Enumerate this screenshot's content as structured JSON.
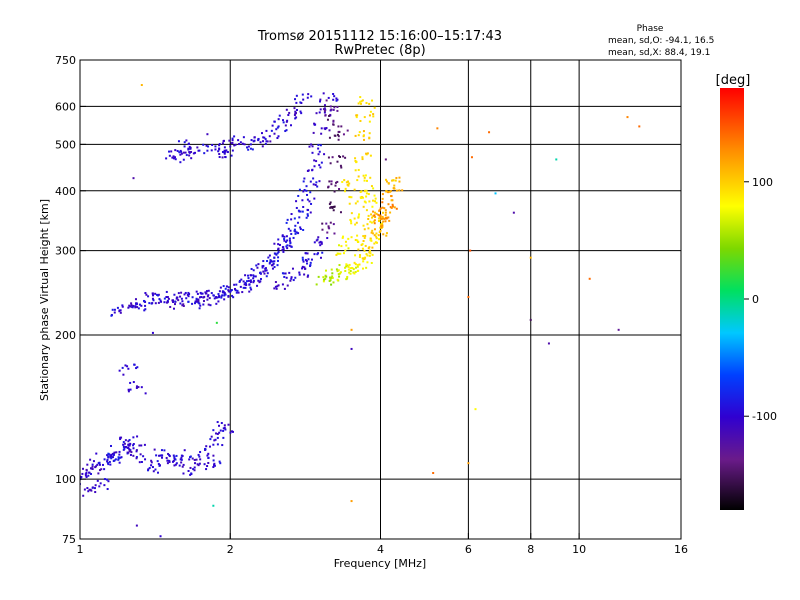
{
  "chart_data": {
    "type": "scatter",
    "title": "Tromsø 20151112 15:16:00–15:17:43",
    "subtitle": "RwPretec (8p)",
    "xlabel": "Frequency [MHz]",
    "ylabel": "Stationary phase Virtual Height [km]",
    "x_scale": "log",
    "y_scale": "log",
    "xlim": [
      1,
      16
    ],
    "ylim": [
      75,
      750
    ],
    "x_ticks": [
      1,
      2,
      4,
      6,
      8,
      10,
      16
    ],
    "y_ticks": [
      75,
      100,
      200,
      300,
      400,
      500,
      600,
      750
    ],
    "x_tick_labels": [
      "1",
      "2",
      "4",
      "6",
      "8",
      "10",
      "16"
    ],
    "y_tick_labels": [
      "75",
      "100",
      "200",
      "300",
      "400",
      "500",
      "600",
      "750"
    ],
    "x_grid": [
      2,
      4,
      6,
      8,
      10
    ],
    "y_grid": [
      100,
      200,
      300,
      400,
      500,
      600
    ],
    "grid": true,
    "stats": {
      "heading": "Phase",
      "line1": "mean, sd,O: -94.1, 16.5",
      "line2": "mean, sd,X:  88.4, 19.1"
    },
    "colorbar": {
      "label": "[deg]",
      "min": -180,
      "max": 180,
      "ticks": [
        100,
        0,
        -100
      ],
      "tick_labels": [
        "100",
        "0",
        "-100"
      ],
      "colormap": "rainbow"
    },
    "series": [
      {
        "trace": "O-mode F-region trace",
        "points": [
          [
            1.2,
            225,
            -95
          ],
          [
            1.25,
            228,
            -105
          ],
          [
            1.3,
            232,
            -100
          ],
          [
            1.35,
            230,
            -95
          ],
          [
            1.4,
            238,
            -100
          ],
          [
            1.45,
            236,
            -90
          ],
          [
            1.5,
            240,
            -105
          ],
          [
            1.55,
            232,
            -110
          ],
          [
            1.6,
            238,
            -95
          ],
          [
            1.65,
            241,
            -100
          ],
          [
            1.7,
            233,
            -92
          ],
          [
            1.75,
            240,
            -98
          ],
          [
            1.8,
            237,
            -105
          ],
          [
            1.85,
            242,
            -100
          ],
          [
            1.9,
            240,
            -95
          ],
          [
            1.95,
            244,
            -102
          ],
          [
            2.0,
            246,
            -90
          ],
          [
            2.05,
            248,
            -95
          ],
          [
            2.1,
            252,
            -100
          ],
          [
            2.15,
            256,
            -88
          ],
          [
            2.2,
            260,
            -95
          ],
          [
            2.25,
            265,
            -100
          ],
          [
            2.3,
            270,
            -92
          ],
          [
            2.35,
            275,
            -98
          ],
          [
            2.4,
            282,
            -95
          ],
          [
            2.45,
            290,
            -90
          ],
          [
            2.5,
            298,
            -92
          ],
          [
            2.55,
            305,
            -100
          ],
          [
            2.6,
            315,
            -95
          ],
          [
            2.65,
            325,
            -90
          ],
          [
            2.7,
            338,
            -88
          ],
          [
            2.75,
            352,
            -92
          ],
          [
            2.8,
            370,
            -95
          ],
          [
            2.85,
            392,
            -90
          ],
          [
            2.9,
            418,
            -95
          ],
          [
            2.95,
            450,
            -100
          ],
          [
            3.0,
            490,
            -98
          ],
          [
            3.05,
            540,
            -105
          ],
          [
            3.1,
            590,
            -110
          ],
          [
            3.15,
            625,
            -100
          ],
          [
            2.55,
            255,
            -105
          ],
          [
            2.65,
            262,
            -95
          ],
          [
            2.75,
            270,
            -100
          ],
          [
            2.85,
            282,
            -90
          ],
          [
            2.95,
            295,
            -95
          ],
          [
            3.05,
            312,
            -100
          ],
          [
            3.15,
            335,
            -140
          ],
          [
            3.2,
            370,
            -150
          ],
          [
            3.25,
            410,
            -145
          ],
          [
            3.28,
            460,
            -150
          ],
          [
            3.3,
            520,
            -145
          ],
          [
            3.22,
            560,
            -140
          ],
          [
            3.18,
            600,
            -130
          ],
          [
            2.8,
            620,
            -100
          ],
          [
            2.7,
            585,
            -105
          ],
          [
            2.6,
            560,
            -100
          ],
          [
            2.5,
            545,
            -95
          ],
          [
            2.4,
            520,
            -105
          ],
          [
            2.3,
            505,
            -100
          ],
          [
            2.2,
            500,
            -95
          ],
          [
            2.1,
            505,
            -100
          ],
          [
            2.0,
            495,
            -105
          ],
          [
            1.9,
            490,
            -100
          ],
          [
            1.8,
            485,
            -95
          ],
          [
            1.7,
            480,
            -100
          ],
          [
            1.6,
            478,
            -105
          ],
          [
            1.55,
            470,
            -100
          ],
          [
            1.62,
            495,
            -95
          ],
          [
            1.95,
            478,
            -100
          ]
        ]
      },
      {
        "trace": "X-mode F-region trace",
        "points": [
          [
            3.1,
            262,
            55
          ],
          [
            3.2,
            265,
            60
          ],
          [
            3.3,
            268,
            65
          ],
          [
            3.4,
            272,
            70
          ],
          [
            3.5,
            276,
            75
          ],
          [
            3.6,
            280,
            80
          ],
          [
            3.7,
            288,
            85
          ],
          [
            3.75,
            295,
            90
          ],
          [
            3.8,
            305,
            95
          ],
          [
            3.82,
            318,
            90
          ],
          [
            3.85,
            330,
            100
          ],
          [
            3.88,
            345,
            95
          ],
          [
            3.9,
            360,
            100
          ],
          [
            3.8,
            380,
            90
          ],
          [
            3.75,
            400,
            85
          ],
          [
            3.7,
            430,
            90
          ],
          [
            3.68,
            470,
            95
          ],
          [
            3.7,
            520,
            100
          ],
          [
            3.72,
            570,
            95
          ],
          [
            3.75,
            610,
            90
          ],
          [
            3.4,
            300,
            80
          ],
          [
            3.5,
            320,
            85
          ],
          [
            3.55,
            350,
            90
          ],
          [
            3.6,
            380,
            88
          ],
          [
            3.45,
            410,
            92
          ],
          [
            4.0,
            330,
            110
          ],
          [
            4.05,
            345,
            120
          ],
          [
            4.1,
            360,
            115
          ],
          [
            4.15,
            375,
            125
          ],
          [
            4.2,
            390,
            120
          ],
          [
            4.25,
            405,
            110
          ],
          [
            4.22,
            420,
            105
          ],
          [
            4.0,
            355,
            130
          ]
        ]
      },
      {
        "trace": "E-region trace",
        "points": [
          [
            1.0,
            100,
            -95
          ],
          [
            1.03,
            103,
            -100
          ],
          [
            1.06,
            105,
            -110
          ],
          [
            1.09,
            108,
            -100
          ],
          [
            1.12,
            110,
            -90
          ],
          [
            1.15,
            112,
            -95
          ],
          [
            1.18,
            110,
            -85
          ],
          [
            1.2,
            114,
            -100
          ],
          [
            1.22,
            118,
            -95
          ],
          [
            1.25,
            120,
            -105
          ],
          [
            1.28,
            116,
            -100
          ],
          [
            1.3,
            115,
            -110
          ],
          [
            1.35,
            110,
            -100
          ],
          [
            1.4,
            106,
            -95
          ],
          [
            1.45,
            112,
            -100
          ],
          [
            1.5,
            108,
            -105
          ],
          [
            1.55,
            110,
            -100
          ],
          [
            1.6,
            112,
            -95
          ],
          [
            1.65,
            104,
            -100
          ],
          [
            1.7,
            108,
            -105
          ],
          [
            1.8,
            112,
            -100
          ],
          [
            1.85,
            118,
            -95
          ],
          [
            1.9,
            125,
            -100
          ],
          [
            1.95,
            128,
            -105
          ],
          [
            1.85,
            106,
            -100
          ],
          [
            1.3,
            155,
            -105
          ],
          [
            1.25,
            170,
            -100
          ],
          [
            1.05,
            95,
            -110
          ],
          [
            1.1,
            98,
            -100
          ]
        ]
      },
      {
        "trace": "scattered points",
        "points": [
          [
            1.33,
            665,
            110
          ],
          [
            1.28,
            425,
            -120
          ],
          [
            1.8,
            525,
            -110
          ],
          [
            5.2,
            540,
            130
          ],
          [
            6.6,
            530,
            140
          ],
          [
            6.8,
            395,
            -30
          ],
          [
            7.4,
            360,
            -120
          ],
          [
            8.0,
            290,
            110
          ],
          [
            9.0,
            465,
            -10
          ],
          [
            12.5,
            570,
            130
          ],
          [
            13.2,
            545,
            140
          ],
          [
            10.5,
            262,
            140
          ],
          [
            8.0,
            215,
            -150
          ],
          [
            8.7,
            192,
            -120
          ],
          [
            12.0,
            205,
            -130
          ],
          [
            6.1,
            470,
            140
          ],
          [
            6.05,
            300,
            150
          ],
          [
            6.0,
            240,
            140
          ],
          [
            6.2,
            140,
            80
          ],
          [
            6.0,
            108,
            120
          ],
          [
            5.1,
            103,
            140
          ],
          [
            3.5,
            90,
            120
          ],
          [
            1.85,
            88,
            -10
          ],
          [
            1.3,
            80,
            -110
          ],
          [
            1.45,
            76,
            -100
          ],
          [
            3.5,
            187,
            -110
          ],
          [
            3.5,
            205,
            120
          ],
          [
            4.1,
            465,
            -140
          ],
          [
            1.88,
            212,
            20
          ],
          [
            1.4,
            202,
            -100
          ]
        ]
      }
    ]
  }
}
